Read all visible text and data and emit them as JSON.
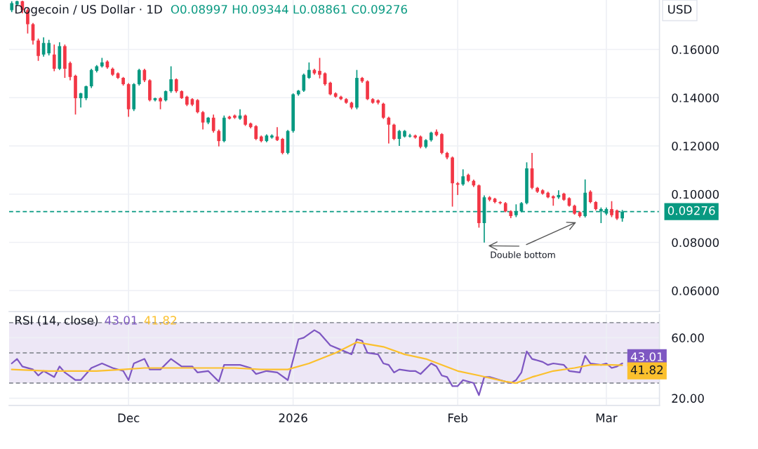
{
  "chart_data": [
    {
      "type": "candlestick",
      "title": "Dogecoin / US Dollar · 1D",
      "subtitle": "O0.08997 H0.09344 L0.08861 C0.09276",
      "ylabel": "USD",
      "x": [
        "2025-11-09",
        "2025-11-10",
        "2025-11-11",
        "2025-11-12",
        "2025-11-13",
        "2025-11-14",
        "2025-11-15",
        "2025-11-16",
        "2025-11-17",
        "2025-11-18",
        "2025-11-19",
        "2025-11-20",
        "2025-11-21",
        "2025-11-22",
        "2025-11-23",
        "2025-11-24",
        "2025-11-25",
        "2025-11-26",
        "2025-11-27",
        "2025-11-28",
        "2025-11-29",
        "2025-11-30",
        "2025-12-01",
        "2025-12-02",
        "2025-12-03",
        "2025-12-04",
        "2025-12-05",
        "2025-12-06",
        "2025-12-07",
        "2025-12-08",
        "2025-12-09",
        "2025-12-10",
        "2025-12-11",
        "2025-12-12",
        "2025-12-13",
        "2025-12-14",
        "2025-12-15",
        "2025-12-16",
        "2025-12-17",
        "2025-12-18",
        "2025-12-19",
        "2025-12-20",
        "2025-12-21",
        "2025-12-22",
        "2025-12-23",
        "2025-12-24",
        "2025-12-25",
        "2025-12-26",
        "2025-12-27",
        "2025-12-28",
        "2025-12-29",
        "2025-12-30",
        "2025-12-31",
        "2026-01-01",
        "2026-01-02",
        "2026-01-03",
        "2026-01-04",
        "2026-01-05",
        "2026-01-06",
        "2026-01-07",
        "2026-01-08",
        "2026-01-09",
        "2026-01-10",
        "2026-01-11",
        "2026-01-12",
        "2026-01-13",
        "2026-01-14",
        "2026-01-15",
        "2026-01-16",
        "2026-01-17",
        "2026-01-18",
        "2026-01-19",
        "2026-01-20",
        "2026-01-21",
        "2026-01-22",
        "2026-01-23",
        "2026-01-24",
        "2026-01-25",
        "2026-01-26",
        "2026-01-27",
        "2026-01-28",
        "2026-01-29",
        "2026-01-30",
        "2026-01-31",
        "2026-02-01",
        "2026-02-02",
        "2026-02-03",
        "2026-02-04",
        "2026-02-05",
        "2026-02-06",
        "2026-02-07",
        "2026-02-08",
        "2026-02-09",
        "2026-02-10",
        "2026-02-11",
        "2026-02-12",
        "2026-02-13",
        "2026-02-14",
        "2026-02-15",
        "2026-02-16",
        "2026-02-17",
        "2026-02-18",
        "2026-02-19",
        "2026-02-20",
        "2026-02-21",
        "2026-02-22",
        "2026-02-23",
        "2026-02-24",
        "2026-02-25",
        "2026-02-26",
        "2026-02-27",
        "2026-02-28",
        "2026-03-01",
        "2026-03-02",
        "2026-03-03",
        "2026-03-04"
      ],
      "ohlc": [
        [
          0.1763,
          0.18,
          0.1755,
          0.1792
        ],
        [
          0.1786,
          0.1802,
          0.178,
          0.18
        ],
        [
          0.18,
          0.1802,
          0.175,
          0.1763
        ],
        [
          0.1763,
          0.177,
          0.1666,
          0.1705
        ],
        [
          0.1705,
          0.171,
          0.162,
          0.1637
        ],
        [
          0.1637,
          0.1645,
          0.1553,
          0.1573
        ],
        [
          0.1579,
          0.165,
          0.157,
          0.1627
        ],
        [
          0.1584,
          0.164,
          0.1575,
          0.1627
        ],
        [
          0.1579,
          0.162,
          0.151,
          0.152
        ],
        [
          0.152,
          0.163,
          0.1515,
          0.1614
        ],
        [
          0.1614,
          0.162,
          0.1482,
          0.152
        ],
        [
          0.1544,
          0.155,
          0.1472,
          0.1486
        ],
        [
          0.1491,
          0.1495,
          0.133,
          0.1398
        ],
        [
          0.1398,
          0.142,
          0.1359,
          0.1418
        ],
        [
          0.1398,
          0.145,
          0.139,
          0.1447
        ],
        [
          0.1447,
          0.152,
          0.144,
          0.1515
        ],
        [
          0.1511,
          0.1535,
          0.1505,
          0.153
        ],
        [
          0.153,
          0.1565,
          0.1525,
          0.1546
        ],
        [
          0.155,
          0.1555,
          0.152,
          0.1526
        ],
        [
          0.152,
          0.1525,
          0.149,
          0.1495
        ],
        [
          0.1501,
          0.1505,
          0.1478,
          0.1482
        ],
        [
          0.1482,
          0.1486,
          0.145,
          0.1456
        ],
        [
          0.1456,
          0.146,
          0.1321,
          0.1352
        ],
        [
          0.1352,
          0.146,
          0.1345,
          0.1456
        ],
        [
          0.1456,
          0.152,
          0.145,
          0.1515
        ],
        [
          0.1515,
          0.152,
          0.1465,
          0.1472
        ],
        [
          0.1472,
          0.1476,
          0.1385,
          0.139
        ],
        [
          0.139,
          0.14,
          0.1385,
          0.1398
        ],
        [
          0.1398,
          0.1402,
          0.1352,
          0.1385
        ],
        [
          0.1389,
          0.143,
          0.1385,
          0.1427
        ],
        [
          0.1427,
          0.153,
          0.142,
          0.1476
        ],
        [
          0.1476,
          0.148,
          0.142,
          0.1427
        ],
        [
          0.1427,
          0.143,
          0.1395,
          0.1398
        ],
        [
          0.1404,
          0.1408,
          0.1365,
          0.1371
        ],
        [
          0.1394,
          0.1398,
          0.1365,
          0.1371
        ],
        [
          0.139,
          0.1394,
          0.1335,
          0.134
        ],
        [
          0.134,
          0.1345,
          0.1268,
          0.1297
        ],
        [
          0.1297,
          0.132,
          0.129,
          0.1317
        ],
        [
          0.1317,
          0.133,
          0.1255,
          0.1262
        ],
        [
          0.1262,
          0.1268,
          0.1198,
          0.122
        ],
        [
          0.122,
          0.1326,
          0.1215,
          0.1317
        ],
        [
          0.1321,
          0.1325,
          0.131,
          0.1313
        ],
        [
          0.1326,
          0.133,
          0.1312,
          0.1317
        ],
        [
          0.1313,
          0.1352,
          0.1308,
          0.1326
        ],
        [
          0.1326,
          0.133,
          0.1283,
          0.1288
        ],
        [
          0.1293,
          0.1297,
          0.1273,
          0.1278
        ],
        [
          0.1282,
          0.1286,
          0.1224,
          0.1229
        ],
        [
          0.1239,
          0.1243,
          0.1215,
          0.122
        ],
        [
          0.122,
          0.1248,
          0.1215,
          0.1243
        ],
        [
          0.1235,
          0.1248,
          0.123,
          0.1243
        ],
        [
          0.1239,
          0.1278,
          0.122,
          0.1224
        ],
        [
          0.1229,
          0.1233,
          0.1165,
          0.1171
        ],
        [
          0.1171,
          0.1266,
          0.1165,
          0.1262
        ],
        [
          0.1262,
          0.1418,
          0.1255,
          0.1414
        ],
        [
          0.1414,
          0.1432,
          0.1408,
          0.1429
        ],
        [
          0.1429,
          0.15,
          0.1424,
          0.1495
        ],
        [
          0.1482,
          0.1546,
          0.1478,
          0.1515
        ],
        [
          0.1515,
          0.152,
          0.1495,
          0.1501
        ],
        [
          0.1511,
          0.1565,
          0.148,
          0.1495
        ],
        [
          0.1501,
          0.1505,
          0.145,
          0.1456
        ],
        [
          0.1462,
          0.1466,
          0.141,
          0.1414
        ],
        [
          0.1418,
          0.1422,
          0.14,
          0.1404
        ],
        [
          0.1404,
          0.1408,
          0.139,
          0.1394
        ],
        [
          0.1394,
          0.1398,
          0.1375,
          0.1379
        ],
        [
          0.1379,
          0.1383,
          0.1352,
          0.1359
        ],
        [
          0.1359,
          0.1515,
          0.1352,
          0.1482
        ],
        [
          0.1482,
          0.1486,
          0.1462,
          0.1468
        ],
        [
          0.1468,
          0.1472,
          0.139,
          0.1394
        ],
        [
          0.1394,
          0.1398,
          0.1375,
          0.1379
        ],
        [
          0.1389,
          0.1393,
          0.1372,
          0.1379
        ],
        [
          0.1375,
          0.1379,
          0.1312,
          0.1317
        ],
        [
          0.1317,
          0.1321,
          0.121,
          0.1288
        ],
        [
          0.1288,
          0.1292,
          0.1224,
          0.1229
        ],
        [
          0.1229,
          0.1266,
          0.12,
          0.1262
        ],
        [
          0.1239,
          0.1266,
          0.1235,
          0.1262
        ],
        [
          0.1239,
          0.125,
          0.1235,
          0.1243
        ],
        [
          0.1243,
          0.1247,
          0.123,
          0.1235
        ],
        [
          0.1239,
          0.1243,
          0.119,
          0.1196
        ],
        [
          0.1196,
          0.1228,
          0.119,
          0.1224
        ],
        [
          0.1224,
          0.1259,
          0.1218,
          0.1255
        ],
        [
          0.1259,
          0.1268,
          0.124,
          0.1245
        ],
        [
          0.1249,
          0.1253,
          0.1165,
          0.1171
        ],
        [
          0.1171,
          0.1175,
          0.1145,
          0.1152
        ],
        [
          0.1152,
          0.1156,
          0.0948,
          0.1045
        ],
        [
          0.1045,
          0.105,
          0.0996,
          0.1039
        ],
        [
          0.1041,
          0.1103,
          0.1035,
          0.1074
        ],
        [
          0.108,
          0.1085,
          0.105,
          0.1055
        ],
        [
          0.1055,
          0.106,
          0.103,
          0.1036
        ],
        [
          0.1036,
          0.104,
          0.0861,
          0.088
        ],
        [
          0.088,
          0.0995,
          0.0799,
          0.0987
        ],
        [
          0.0987,
          0.0992,
          0.097,
          0.0977
        ],
        [
          0.0981,
          0.0985,
          0.0962,
          0.0967
        ],
        [
          0.0967,
          0.0971,
          0.0958,
          0.0963
        ],
        [
          0.0963,
          0.0967,
          0.0925,
          0.0929
        ],
        [
          0.0929,
          0.0933,
          0.09,
          0.0909
        ],
        [
          0.0913,
          0.0958,
          0.0905,
          0.0929
        ],
        [
          0.0929,
          0.0967,
          0.0925,
          0.0963
        ],
        [
          0.0963,
          0.1132,
          0.0958,
          0.1107
        ],
        [
          0.1107,
          0.1171,
          0.102,
          0.1026
        ],
        [
          0.1026,
          0.103,
          0.1005,
          0.101
        ],
        [
          0.1016,
          0.102,
          0.0998,
          0.1002
        ],
        [
          0.1006,
          0.101,
          0.0983,
          0.0987
        ],
        [
          0.0991,
          0.0995,
          0.0952,
          0.0983
        ],
        [
          0.0987,
          0.1016,
          0.098,
          0.0996
        ],
        [
          0.1002,
          0.1006,
          0.0972,
          0.0977
        ],
        [
          0.0983,
          0.0987,
          0.0948,
          0.0952
        ],
        [
          0.0952,
          0.0956,
          0.0915,
          0.0919
        ],
        [
          0.0925,
          0.0929,
          0.0903,
          0.0909
        ],
        [
          0.0909,
          0.1061,
          0.0903,
          0.1006
        ],
        [
          0.101,
          0.1016,
          0.0962,
          0.0967
        ],
        [
          0.0967,
          0.0971,
          0.0932,
          0.0938
        ],
        [
          0.0929,
          0.0945,
          0.088,
          0.0938
        ],
        [
          0.0919,
          0.0945,
          0.0913,
          0.0938
        ],
        [
          0.0938,
          0.0971,
          0.0905,
          0.0913
        ],
        [
          0.0932,
          0.0936,
          0.0893,
          0.0899
        ],
        [
          0.08997,
          0.09344,
          0.08861,
          0.09276
        ]
      ],
      "colors": [
        "#089981",
        "#089981",
        "#f23645",
        "#f23645",
        "#f23645",
        "#f23645",
        "#089981",
        "#089981",
        "#f23645",
        "#089981",
        "#f23645",
        "#f23645",
        "#f23645",
        "#089981",
        "#089981",
        "#089981",
        "#089981",
        "#089981",
        "#f23645",
        "#f23645",
        "#f23645",
        "#f23645",
        "#f23645",
        "#089981",
        "#089981",
        "#f23645",
        "#f23645",
        "#089981",
        "#f23645",
        "#089981",
        "#089981",
        "#f23645",
        "#f23645",
        "#f23645",
        "#f23645",
        "#f23645",
        "#f23645",
        "#089981",
        "#f23645",
        "#f23645",
        "#089981",
        "#f23645",
        "#f23645",
        "#089981",
        "#f23645",
        "#f23645",
        "#f23645",
        "#f23645",
        "#089981",
        "#089981",
        "#f23645",
        "#f23645",
        "#089981",
        "#089981",
        "#089981",
        "#089981",
        "#089981",
        "#f23645",
        "#f23645",
        "#f23645",
        "#f23645",
        "#f23645",
        "#f23645",
        "#f23645",
        "#f23645",
        "#089981",
        "#f23645",
        "#f23645",
        "#f23645",
        "#f23645",
        "#f23645",
        "#f23645",
        "#f23645",
        "#089981",
        "#089981",
        "#089981",
        "#f23645",
        "#f23645",
        "#089981",
        "#089981",
        "#f23645",
        "#f23645",
        "#f23645",
        "#f23645",
        "#f23645",
        "#089981",
        "#f23645",
        "#f23645",
        "#f23645",
        "#089981",
        "#f23645",
        "#f23645",
        "#f23645",
        "#f23645",
        "#f23645",
        "#089981",
        "#089981",
        "#089981",
        "#f23645",
        "#f23645",
        "#f23645",
        "#f23645",
        "#f23645",
        "#089981",
        "#f23645",
        "#f23645",
        "#f23645",
        "#f23645",
        "#089981",
        "#f23645",
        "#f23645",
        "#089981",
        "#089981",
        "#f23645",
        "#f23645",
        "#089981"
      ],
      "xlim": [
        "2025-11-08T12:00",
        "2026-03-11"
      ],
      "xticks": [
        {
          "value": "2025-12-01",
          "label": null
        },
        {
          "value": "2026-01-01",
          "label": null
        },
        {
          "value": "2026-02-01",
          "label": null
        },
        {
          "value": "2026-03-01",
          "label": null
        }
      ],
      "ylim": [
        0.0513,
        0.1805
      ],
      "yticks": [
        {
          "value": 0.06,
          "label": "0.06000"
        },
        {
          "value": 0.08,
          "label": "0.08000"
        },
        {
          "value": 0.1,
          "label": "0.10000"
        },
        {
          "value": 0.12,
          "label": "0.12000"
        },
        {
          "value": 0.14,
          "label": "0.14000"
        },
        {
          "value": 0.16,
          "label": "0.16000"
        }
      ],
      "ref_lines": [
        {
          "axis": "y",
          "value": 0.09276,
          "label": "0.09276",
          "color": "#089981",
          "line_style": "dashed"
        }
      ],
      "annotations": [
        "Double bottom"
      ],
      "grid": true,
      "tick_labels": "y"
    },
    {
      "type": "line",
      "title": "RSI (14, close)",
      "series": [
        {
          "color": "#7e57c2",
          "x": [
            "2025-11-09",
            "2025-11-10",
            "2025-11-11",
            "2025-11-13",
            "2025-11-14",
            "2025-11-15",
            "2025-11-17",
            "2025-11-18",
            "2025-11-19",
            "2025-11-21",
            "2025-11-22",
            "2025-11-24",
            "2025-11-26",
            "2025-11-28",
            "2025-11-30",
            "2025-12-01",
            "2025-12-02",
            "2025-12-04",
            "2025-12-05",
            "2025-12-07",
            "2025-12-09",
            "2025-12-11",
            "2025-12-13",
            "2025-12-14",
            "2025-12-16",
            "2025-12-18",
            "2025-12-19",
            "2025-12-22",
            "2025-12-24",
            "2025-12-25",
            "2025-12-27",
            "2025-12-29",
            "2025-12-31",
            "2026-01-02",
            "2026-01-03",
            "2026-01-05",
            "2026-01-06",
            "2026-01-08",
            "2026-01-10",
            "2026-01-12",
            "2026-01-13",
            "2026-01-14",
            "2026-01-15",
            "2026-01-17",
            "2026-01-18",
            "2026-01-19",
            "2026-01-20",
            "2026-01-21",
            "2026-01-23",
            "2026-01-24",
            "2026-01-25",
            "2026-01-27",
            "2026-01-28",
            "2026-01-29",
            "2026-01-30",
            "2026-01-31",
            "2026-02-01",
            "2026-02-02",
            "2026-02-04",
            "2026-02-05",
            "2026-02-06",
            "2026-02-07",
            "2026-02-09",
            "2026-02-11",
            "2026-02-12",
            "2026-02-13",
            "2026-02-14",
            "2026-02-15",
            "2026-02-17",
            "2026-02-18",
            "2026-02-19",
            "2026-02-21",
            "2026-02-22",
            "2026-02-24",
            "2026-02-25",
            "2026-02-26",
            "2026-02-28",
            "2026-03-01",
            "2026-03-02",
            "2026-03-03",
            "2026-03-04"
          ],
          "values": [
            43,
            46,
            41,
            39,
            35,
            38,
            34,
            41,
            37,
            32,
            32,
            40,
            43,
            40,
            38,
            32,
            43,
            46,
            39,
            39,
            46,
            41,
            41,
            37,
            38,
            31,
            42,
            42,
            40,
            36,
            38,
            37,
            32,
            59,
            60,
            65,
            63,
            55,
            52,
            49,
            59,
            58,
            50,
            49,
            43,
            42,
            37,
            39,
            38,
            38,
            36,
            43,
            41,
            35,
            34,
            28,
            28,
            32,
            30,
            22,
            34,
            34,
            32,
            30,
            32,
            37,
            51,
            46,
            44,
            42,
            43,
            42,
            38,
            37,
            48,
            43,
            42,
            43,
            40,
            41,
            43.01
          ],
          "value_labels": [
            null,
            null,
            null,
            null,
            null,
            null,
            null,
            null,
            null,
            null,
            null,
            null,
            null,
            null,
            null,
            null,
            null,
            null,
            null,
            null,
            null,
            null,
            null,
            null,
            null,
            null,
            null,
            null,
            null,
            null,
            null,
            null,
            null,
            null,
            null,
            null,
            null,
            null,
            null,
            null,
            null,
            null,
            null,
            null,
            null,
            null,
            null,
            null,
            null,
            null,
            null,
            null,
            null,
            null,
            null,
            null,
            null,
            null,
            null,
            null,
            null,
            null,
            null,
            null,
            null,
            null,
            null,
            null,
            null,
            null,
            null,
            null,
            null,
            null,
            null,
            null,
            null,
            null,
            null,
            null,
            "43.01"
          ]
        },
        {
          "color": "#fbc02d",
          "x": [
            "2025-11-09",
            "2025-11-16",
            "2025-11-22",
            "2025-11-25",
            "2025-11-30",
            "2025-12-04",
            "2025-12-10",
            "2025-12-15",
            "2025-12-21",
            "2025-12-26",
            "2025-12-31",
            "2026-01-04",
            "2026-01-09",
            "2026-01-13",
            "2026-01-18",
            "2026-01-22",
            "2026-01-26",
            "2026-02-01",
            "2026-02-05",
            "2026-02-10",
            "2026-02-12",
            "2026-02-15",
            "2026-02-19",
            "2026-02-23",
            "2026-02-26",
            "2026-03-02",
            "2026-03-04"
          ],
          "values": [
            39,
            38,
            38,
            38,
            39,
            40,
            40,
            40,
            40,
            39,
            39,
            43,
            50,
            57,
            54,
            49,
            46,
            38,
            35,
            31,
            30,
            34,
            38,
            40,
            42,
            42,
            41.82
          ],
          "value_labels": [
            null,
            null,
            null,
            null,
            null,
            null,
            null,
            null,
            null,
            null,
            null,
            null,
            null,
            null,
            null,
            null,
            null,
            null,
            null,
            null,
            null,
            null,
            null,
            null,
            null,
            null,
            "41.82"
          ]
        }
      ],
      "xlim": [
        "2025-11-08T12:00",
        "2026-03-11"
      ],
      "xticks": [
        {
          "value": "2025-12-01",
          "label": "Dec"
        },
        {
          "value": "2026-01-01",
          "label": "2026"
        },
        {
          "value": "2026-02-01",
          "label": "Feb"
        },
        {
          "value": "2026-03-01",
          "label": "Mar"
        }
      ],
      "ylim": [
        15.2,
        75.5
      ],
      "yticks": [
        {
          "value": 20,
          "label": "20.00"
        },
        {
          "value": 60,
          "label": "60.00"
        }
      ],
      "bands": [
        {
          "axis": "y",
          "from": 30,
          "to": 70,
          "color": "#ede7f6"
        }
      ],
      "ref_lines": [
        {
          "axis": "y",
          "value": 70,
          "color": "#9598a1",
          "line_style": "dashed"
        },
        {
          "axis": "y",
          "value": 50,
          "color": "#9598a1",
          "line_style": "dashed"
        },
        {
          "axis": "y",
          "value": 30,
          "color": "#9598a1",
          "line_style": "dashed"
        }
      ],
      "grid": true
    }
  ]
}
